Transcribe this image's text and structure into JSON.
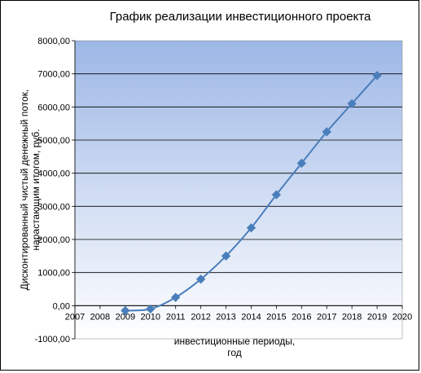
{
  "chart_data": {
    "type": "line",
    "title": "График реализации инвестиционного проекта",
    "xlabel_lines": [
      "инвестиционные периоды,",
      "год"
    ],
    "ylabel_lines": [
      "Дисконтированный чистый денежный поток,",
      "нарастающим итогом, руб."
    ],
    "x_ticks": [
      "2007",
      "2008",
      "2009",
      "2010",
      "2011",
      "2012",
      "2013",
      "2014",
      "2015",
      "2016",
      "2017",
      "2018",
      "2019",
      "2020"
    ],
    "y_ticks": [
      "-1000,00",
      "0,00",
      "1000,00",
      "2000,00",
      "3000,00",
      "4000,00",
      "5000,00",
      "6000,00",
      "7000,00",
      "8000,00"
    ],
    "xlim": [
      2007,
      2020
    ],
    "ylim": [
      -1000,
      8000
    ],
    "grid": true,
    "legend": "none",
    "series": [
      {
        "x": [
          2009,
          2010,
          2011,
          2012,
          2013,
          2014,
          2015,
          2016,
          2017,
          2018,
          2019
        ],
        "values": [
          -150,
          -100,
          250,
          800,
          1500,
          2350,
          3350,
          4300,
          5250,
          6100,
          6950
        ]
      }
    ],
    "colors": {
      "line": "#4A7EBB",
      "plot_gradient_top": "#9DB7E6",
      "plot_gradient_bottom": "#FFFFFF"
    }
  }
}
